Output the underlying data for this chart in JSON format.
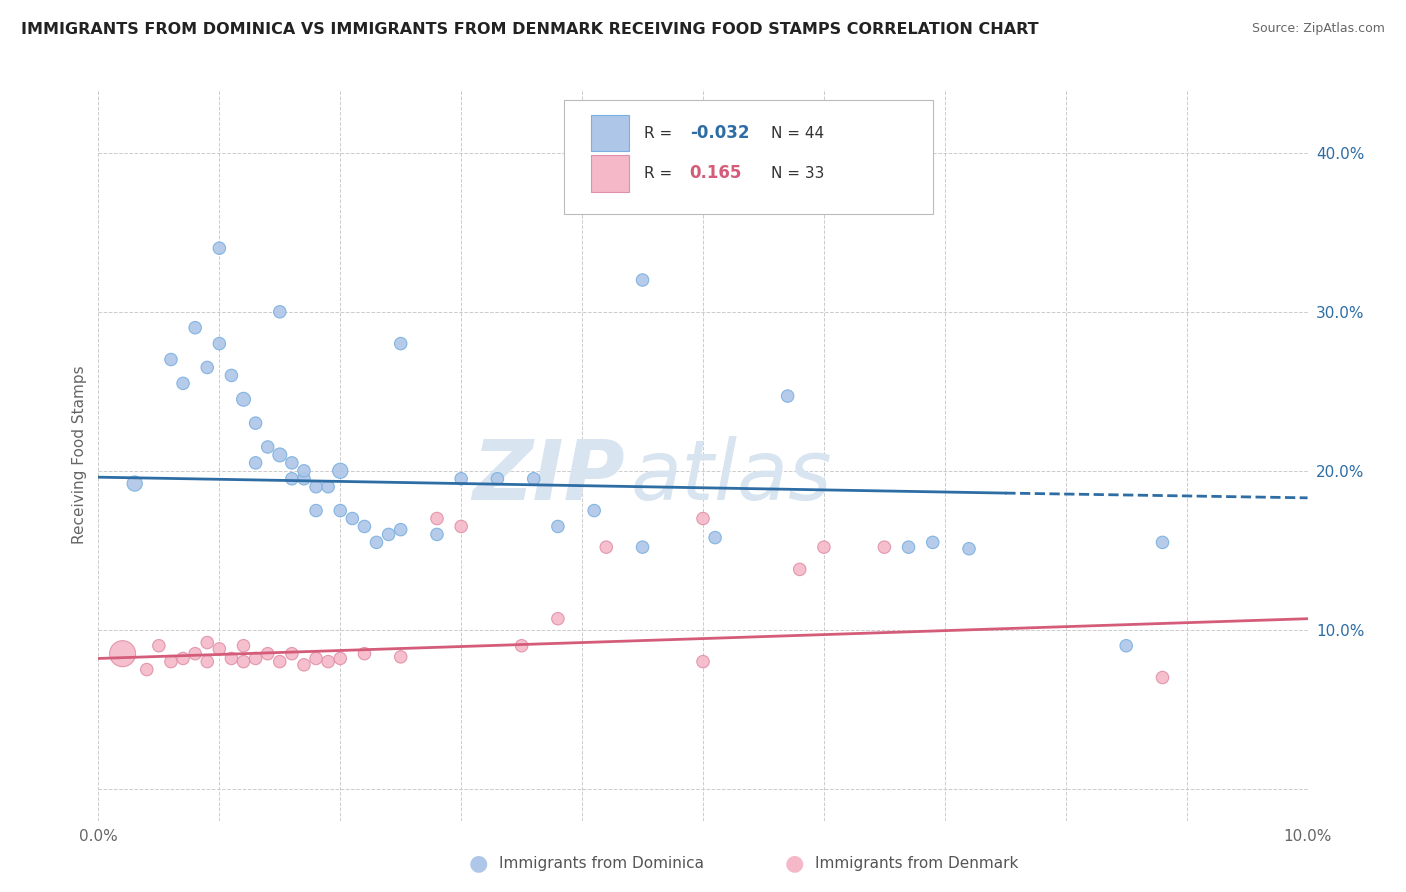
{
  "title": "IMMIGRANTS FROM DOMINICA VS IMMIGRANTS FROM DENMARK RECEIVING FOOD STAMPS CORRELATION CHART",
  "source": "Source: ZipAtlas.com",
  "ylabel": "Receiving Food Stamps",
  "xlim": [
    0.0,
    0.1
  ],
  "ylim": [
    -0.02,
    0.44
  ],
  "ytick_values": [
    0.0,
    0.1,
    0.2,
    0.3,
    0.4
  ],
  "xtick_values": [
    0.0,
    0.01,
    0.02,
    0.03,
    0.04,
    0.05,
    0.06,
    0.07,
    0.08,
    0.09,
    0.1
  ],
  "blue_color": "#2e6da4",
  "blue_scatter_color": "#aec6e8",
  "blue_edge_color": "#7ab0e0",
  "pink_color": "#d45c79",
  "pink_scatter_color": "#f4b8c8",
  "pink_edge_color": "#e090a8",
  "watermark_color": "#d8e4f0",
  "grid_color": "#cccccc",
  "background_color": "#ffffff",
  "dominica_R": "-0.032",
  "dominica_N": "44",
  "denmark_R": "0.165",
  "denmark_N": "33",
  "dominica_line_x": [
    0.0,
    0.075,
    0.1
  ],
  "dominica_line_y": [
    0.196,
    0.186,
    0.183
  ],
  "dominica_line_solid_end": 0.075,
  "denmark_line_x": [
    0.0,
    0.1
  ],
  "denmark_line_y": [
    0.082,
    0.107
  ],
  "dominica_scatter_x": [
    0.003,
    0.006,
    0.007,
    0.008,
    0.009,
    0.01,
    0.01,
    0.011,
    0.012,
    0.013,
    0.013,
    0.014,
    0.015,
    0.015,
    0.016,
    0.016,
    0.017,
    0.017,
    0.018,
    0.018,
    0.019,
    0.02,
    0.02,
    0.021,
    0.022,
    0.023,
    0.024,
    0.025,
    0.028,
    0.03,
    0.033,
    0.036,
    0.038,
    0.041,
    0.045,
    0.051,
    0.057,
    0.067,
    0.069,
    0.072,
    0.085,
    0.088,
    0.045,
    0.025
  ],
  "dominica_scatter_y": [
    0.192,
    0.27,
    0.255,
    0.29,
    0.265,
    0.28,
    0.34,
    0.26,
    0.245,
    0.23,
    0.205,
    0.215,
    0.21,
    0.3,
    0.195,
    0.205,
    0.195,
    0.2,
    0.175,
    0.19,
    0.19,
    0.175,
    0.2,
    0.17,
    0.165,
    0.155,
    0.16,
    0.163,
    0.16,
    0.195,
    0.195,
    0.195,
    0.165,
    0.175,
    0.152,
    0.158,
    0.247,
    0.152,
    0.155,
    0.151,
    0.09,
    0.155,
    0.32,
    0.28
  ],
  "dominica_scatter_sizes": [
    120,
    80,
    80,
    80,
    80,
    80,
    80,
    80,
    100,
    80,
    80,
    80,
    100,
    80,
    80,
    80,
    80,
    80,
    80,
    80,
    80,
    80,
    120,
    80,
    80,
    80,
    80,
    80,
    80,
    80,
    80,
    80,
    80,
    80,
    80,
    80,
    80,
    80,
    80,
    80,
    80,
    80,
    80,
    80
  ],
  "denmark_scatter_x": [
    0.002,
    0.004,
    0.005,
    0.006,
    0.007,
    0.008,
    0.009,
    0.009,
    0.01,
    0.011,
    0.012,
    0.012,
    0.013,
    0.014,
    0.015,
    0.016,
    0.017,
    0.018,
    0.019,
    0.02,
    0.022,
    0.025,
    0.028,
    0.03,
    0.035,
    0.038,
    0.042,
    0.05,
    0.058,
    0.065,
    0.088,
    0.05,
    0.06
  ],
  "denmark_scatter_y": [
    0.085,
    0.075,
    0.09,
    0.08,
    0.082,
    0.085,
    0.08,
    0.092,
    0.088,
    0.082,
    0.08,
    0.09,
    0.082,
    0.085,
    0.08,
    0.085,
    0.078,
    0.082,
    0.08,
    0.082,
    0.085,
    0.083,
    0.17,
    0.165,
    0.09,
    0.107,
    0.152,
    0.08,
    0.138,
    0.152,
    0.07,
    0.17,
    0.152
  ],
  "denmark_scatter_sizes": [
    350,
    80,
    80,
    80,
    80,
    80,
    80,
    80,
    80,
    80,
    80,
    80,
    80,
    80,
    80,
    80,
    80,
    80,
    80,
    80,
    80,
    80,
    80,
    80,
    80,
    80,
    80,
    80,
    80,
    80,
    80,
    80,
    80
  ]
}
